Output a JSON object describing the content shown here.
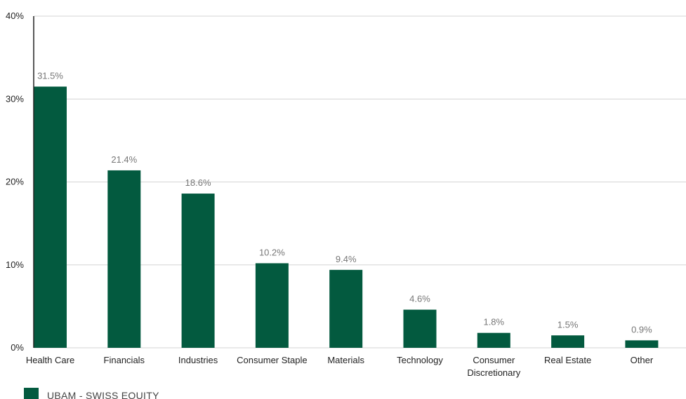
{
  "chart_data": {
    "type": "bar",
    "categories": [
      "Health Care",
      "Financials",
      "Industries",
      "Consumer Staple",
      "Materials",
      "Technology",
      "Consumer Discretionary",
      "Real Estate",
      "Other"
    ],
    "series": [
      {
        "name": "UBAM - SWISS EQUITY",
        "values": [
          31.5,
          21.4,
          18.6,
          10.2,
          9.4,
          4.6,
          1.8,
          1.5,
          0.9
        ],
        "labels": [
          "31.5%",
          "21.4%",
          "18.6%",
          "10.2%",
          "9.4%",
          "4.6%",
          "1.8%",
          "1.5%",
          "0.9%"
        ]
      }
    ],
    "yticks": [
      0,
      10,
      20,
      30,
      40
    ],
    "ytick_labels": [
      "0%",
      "10%",
      "20%",
      "30%",
      "40%"
    ],
    "ylim": [
      0,
      40
    ],
    "grid": true,
    "legend_position": "bottom-left",
    "colors": {
      "bar": "#035a3f",
      "grid": "#d4d4d4",
      "axis": "#222222"
    }
  },
  "legend": {
    "label": "UBAM - SWISS EQUITY"
  }
}
